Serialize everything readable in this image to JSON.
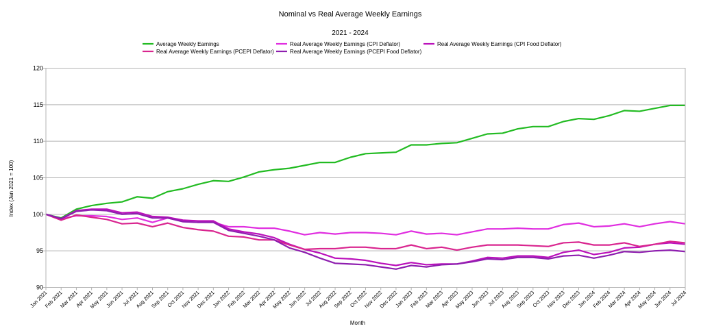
{
  "chart_data": {
    "type": "line",
    "title": "Nominal vs Real Average Weekly Earnings",
    "subtitle": "2021 - 2024",
    "xlabel": "Month",
    "ylabel": "Index (Jan 2021 = 100)",
    "ylim": [
      90,
      120
    ],
    "yticks": [
      "90",
      "95",
      "100",
      "105",
      "110",
      "115",
      "120"
    ],
    "grid": true,
    "legend_position": "top-center",
    "categories": [
      "Jan 2021",
      "Feb 2021",
      "Mar 2021",
      "Apr 2021",
      "May 2021",
      "Jun 2021",
      "Jul 2021",
      "Aug 2021",
      "Sep 2021",
      "Oct 2021",
      "Nov 2021",
      "Dec 2021",
      "Jan 2022",
      "Feb 2022",
      "Mar 2022",
      "Apr 2022",
      "May 2022",
      "Jun 2022",
      "Jul 2022",
      "Aug 2022",
      "Sep 2022",
      "Oct 2022",
      "Nov 2022",
      "Dec 2022",
      "Jan 2023",
      "Feb 2023",
      "Mar 2023",
      "Apr 2023",
      "May 2023",
      "Jun 2023",
      "Jul 2023",
      "Aug 2023",
      "Sep 2023",
      "Oct 2023",
      "Nov 2023",
      "Dec 2023",
      "Jan 2024",
      "Feb 2024",
      "Mar 2024",
      "Apr 2024",
      "May 2024",
      "Jun 2024",
      "Jul 2024"
    ],
    "series": [
      {
        "name": "Average Weekly Earnings",
        "color": "#22bb22",
        "values": [
          100,
          99.5,
          100.7,
          101.2,
          101.5,
          101.7,
          102.4,
          102.2,
          103.1,
          103.5,
          104.1,
          104.6,
          104.5,
          105.1,
          105.8,
          106.1,
          106.3,
          106.7,
          107.1,
          107.1,
          107.8,
          108.3,
          108.4,
          108.5,
          109.5,
          109.5,
          109.7,
          109.8,
          110.4,
          111.0,
          111.1,
          111.7,
          112.0,
          112.0,
          112.7,
          113.1,
          113.0,
          113.5,
          114.2,
          114.1,
          114.5,
          114.9,
          114.9
        ]
      },
      {
        "name": "Real Average Weekly Earnings (CPI Deflator)",
        "color": "#e02ee0",
        "values": [
          100,
          99.4,
          99.8,
          99.8,
          99.7,
          99.3,
          99.5,
          98.9,
          99.5,
          99.0,
          98.9,
          98.9,
          98.3,
          98.3,
          98.1,
          98.1,
          97.7,
          97.2,
          97.5,
          97.3,
          97.5,
          97.5,
          97.4,
          97.2,
          97.7,
          97.3,
          97.4,
          97.2,
          97.6,
          98.0,
          98.0,
          98.1,
          98.0,
          98.0,
          98.6,
          98.8,
          98.3,
          98.4,
          98.7,
          98.3,
          98.7,
          99.0,
          98.7
        ]
      },
      {
        "name": "Real Average Weekly Earnings (CPI Food Deflator)",
        "color": "#bb11bb",
        "values": [
          100,
          99.4,
          100.5,
          100.7,
          100.7,
          100.2,
          100.3,
          99.7,
          99.6,
          99.2,
          99.1,
          99.1,
          98.0,
          97.6,
          97.3,
          96.8,
          95.9,
          95.2,
          94.7,
          94.0,
          93.9,
          93.7,
          93.3,
          93.0,
          93.4,
          93.1,
          93.2,
          93.2,
          93.6,
          94.1,
          94.0,
          94.3,
          94.3,
          94.1,
          94.8,
          95.1,
          94.5,
          94.8,
          95.4,
          95.5,
          95.9,
          96.1,
          95.9
        ]
      },
      {
        "name": "Real Average Weekly Earnings (PCEPI Deflator)",
        "color": "#d9258f",
        "values": [
          100,
          99.2,
          99.9,
          99.6,
          99.3,
          98.7,
          98.8,
          98.3,
          98.8,
          98.2,
          97.9,
          97.7,
          97.0,
          96.9,
          96.5,
          96.5,
          95.8,
          95.2,
          95.3,
          95.3,
          95.5,
          95.5,
          95.3,
          95.3,
          95.8,
          95.3,
          95.5,
          95.1,
          95.5,
          95.8,
          95.8,
          95.8,
          95.7,
          95.6,
          96.1,
          96.2,
          95.8,
          95.8,
          96.1,
          95.6,
          95.9,
          96.3,
          96.1
        ]
      },
      {
        "name": "Real Average Weekly Earnings (PCEPI Food Deflator)",
        "color": "#8e1eaf",
        "values": [
          100,
          99.4,
          100.4,
          100.6,
          100.5,
          100.0,
          100.1,
          99.5,
          99.5,
          99.0,
          98.9,
          98.9,
          97.8,
          97.4,
          97.0,
          96.5,
          95.4,
          94.8,
          94.0,
          93.3,
          93.2,
          93.1,
          92.8,
          92.5,
          93.0,
          92.8,
          93.1,
          93.2,
          93.5,
          93.9,
          93.8,
          94.1,
          94.1,
          93.9,
          94.3,
          94.4,
          94.0,
          94.4,
          94.9,
          94.8,
          95.0,
          95.1,
          94.9
        ]
      }
    ]
  }
}
